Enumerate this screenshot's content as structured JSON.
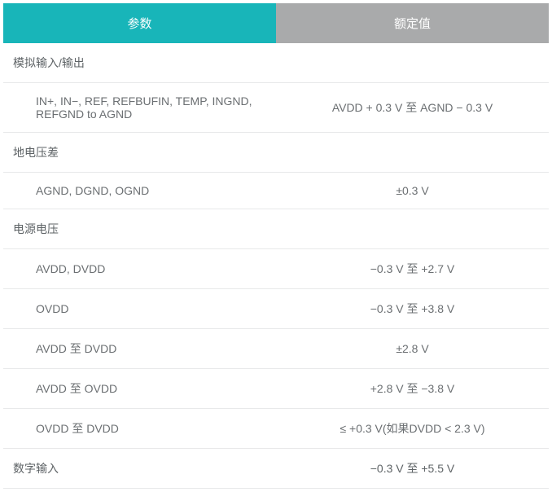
{
  "table": {
    "headers": {
      "param": "参数",
      "value": "额定值"
    },
    "rows": [
      {
        "type": "section",
        "param": "模拟输入/输出",
        "value": ""
      },
      {
        "type": "item",
        "param": "IN+, IN−, REF, REFBUFIN, TEMP, INGND, REFGND to AGND",
        "value": "AVDD + 0.3 V 至 AGND − 0.3 V"
      },
      {
        "type": "section",
        "param": "地电压差",
        "value": ""
      },
      {
        "type": "item",
        "param": "AGND, DGND, OGND",
        "value": "±0.3 V"
      },
      {
        "type": "section",
        "param": "电源电压",
        "value": ""
      },
      {
        "type": "item",
        "param": "AVDD, DVDD",
        "value": "−0.3 V 至 +2.7 V"
      },
      {
        "type": "item",
        "param": "OVDD",
        "value": "−0.3 V 至 +3.8 V"
      },
      {
        "type": "item",
        "param": "AVDD 至 DVDD",
        "value": "±2.8 V"
      },
      {
        "type": "item",
        "param": "AVDD 至 OVDD",
        "value": "+2.8 V 至 −3.8 V"
      },
      {
        "type": "item",
        "param": "OVDD 至 DVDD",
        "value": "≤ +0.3 V(如果DVDD < 2.3 V)"
      },
      {
        "type": "section",
        "param": "数字输入",
        "value": "−0.3 V 至 +5.5 V"
      }
    ],
    "colors": {
      "header_param_bg": "#18b5b9",
      "header_value_bg": "#a9aaab",
      "header_text": "#ffffff",
      "cell_text": "#6b6f72",
      "border": "#e8e9ea",
      "background": "#ffffff"
    },
    "font_sizes": {
      "header": 15,
      "cell": 14
    }
  }
}
